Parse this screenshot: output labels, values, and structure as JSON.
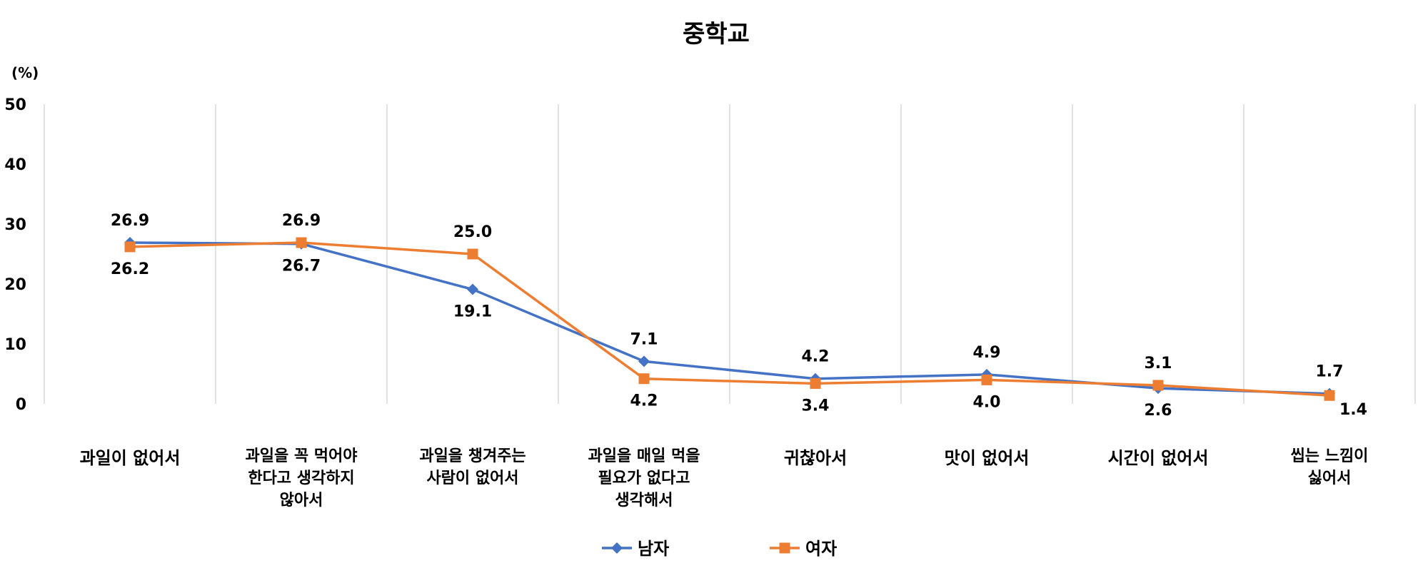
{
  "chart_data": {
    "type": "line",
    "title": "중학교",
    "ylabel": "(%)",
    "xlabel": "",
    "ylim": [
      0,
      50
    ],
    "yticks": [
      0,
      10,
      20,
      30,
      40,
      50
    ],
    "grid": "vertical",
    "legend": "bottom",
    "categories": [
      [
        "과일이 없어서"
      ],
      [
        "과일을 꼭 먹어야",
        "한다고 생각하지",
        "않아서"
      ],
      [
        "과일을 챙겨주는",
        "사람이 없어서"
      ],
      [
        "과일을 매일 먹을",
        "필요가 없다고",
        "생각해서"
      ],
      [
        "귀찮아서"
      ],
      [
        "맛이 없어서"
      ],
      [
        "시간이 없어서"
      ],
      [
        "씹는 느낌이",
        "싫어서"
      ]
    ],
    "series": [
      {
        "name": "남자",
        "color": "#4472C4",
        "marker": "diamond",
        "values": [
          26.9,
          26.7,
          19.1,
          7.1,
          4.2,
          4.9,
          2.6,
          1.7
        ],
        "value_labels": [
          "26.9",
          "26.7",
          "19.1",
          "7.1",
          "4.2",
          "4.9",
          "2.6",
          "1.7"
        ]
      },
      {
        "name": "여자",
        "color": "#ED7D31",
        "marker": "square",
        "values": [
          26.2,
          26.9,
          25.0,
          4.2,
          3.4,
          4.0,
          3.1,
          1.4
        ],
        "value_labels": [
          "26.2",
          "26.9",
          "25.0",
          "4.2",
          "3.4",
          "4.0",
          "3.1",
          "1.4"
        ]
      }
    ]
  }
}
